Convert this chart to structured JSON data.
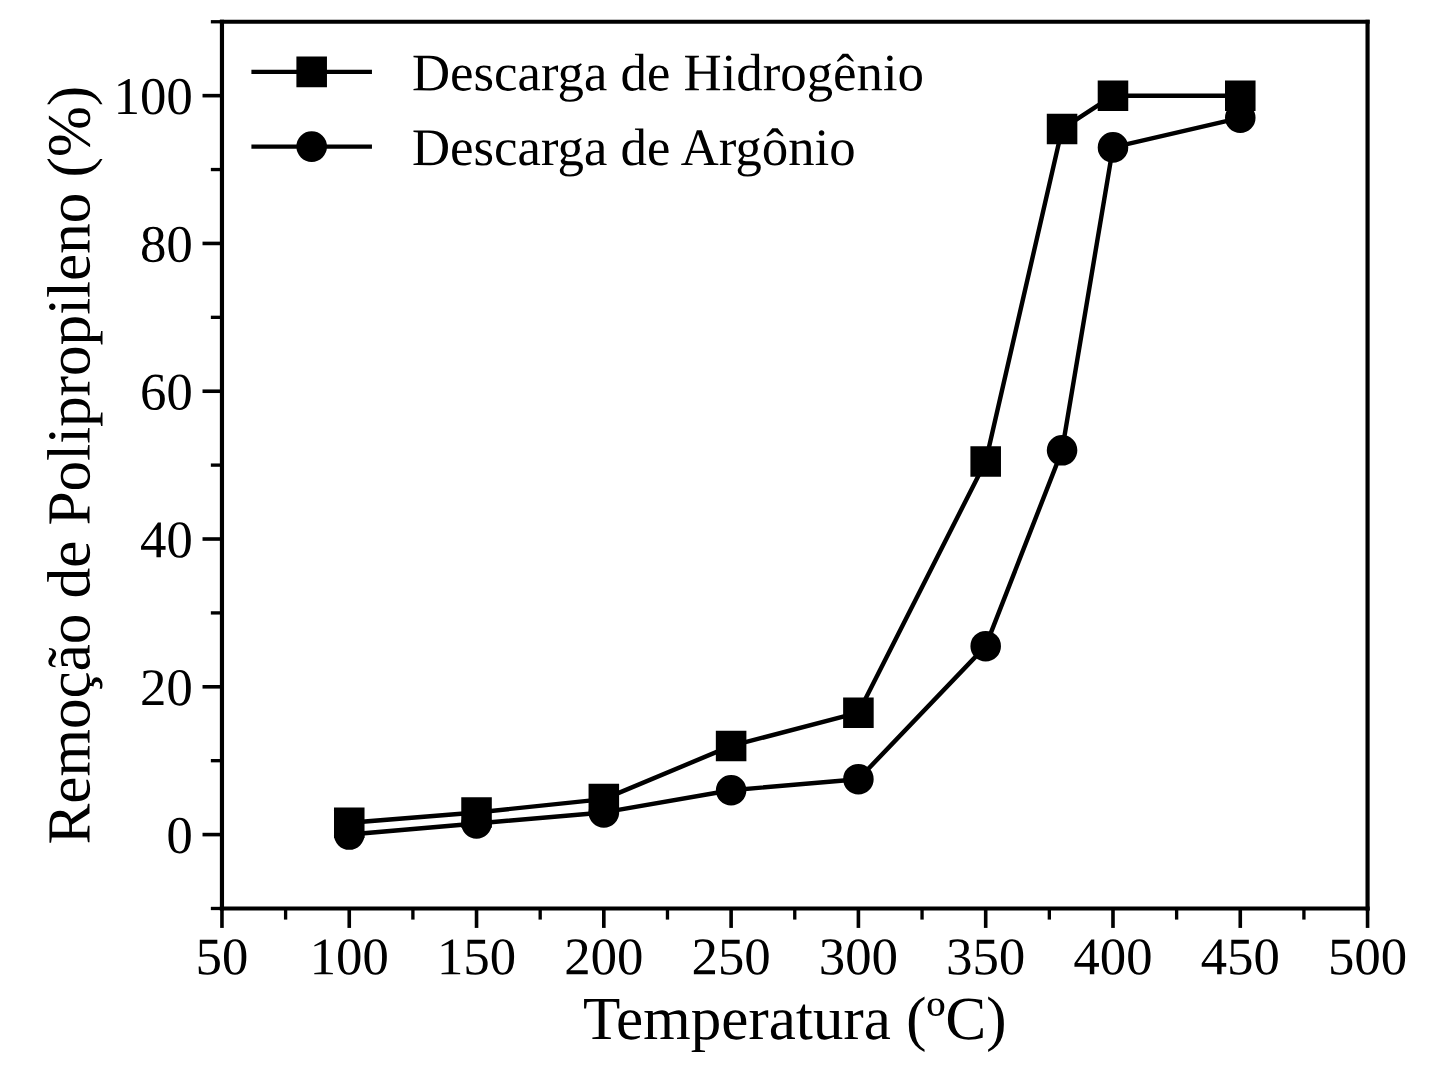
{
  "chart_data": {
    "type": "line",
    "xlabel": "Temperatura (ºC)",
    "ylabel": "Remoção de Polipropileno (%)",
    "xlim": [
      50,
      500
    ],
    "xticks": [
      50,
      100,
      150,
      200,
      250,
      300,
      350,
      400,
      450,
      500
    ],
    "ylim": [
      -10,
      110
    ],
    "yticks": [
      0,
      20,
      40,
      60,
      80,
      100
    ],
    "grid": false,
    "legend": "top left",
    "series": [
      {
        "name": "Descarga de Hidrogênio",
        "color": "#000000",
        "marker": "square",
        "x": [
          100,
          150,
          200,
          250,
          300,
          350,
          380,
          400,
          450
        ],
        "values": [
          1.6,
          3,
          4.8,
          12,
          16.5,
          50.5,
          95.5,
          100,
          100
        ]
      },
      {
        "name": "Descarga de Argônio",
        "color": "#000000",
        "marker": "circle",
        "x": [
          100,
          150,
          200,
          250,
          300,
          350,
          380,
          400,
          450
        ],
        "values": [
          0,
          1.5,
          3,
          6,
          7.5,
          25.5,
          52,
          93,
          97
        ]
      }
    ]
  }
}
